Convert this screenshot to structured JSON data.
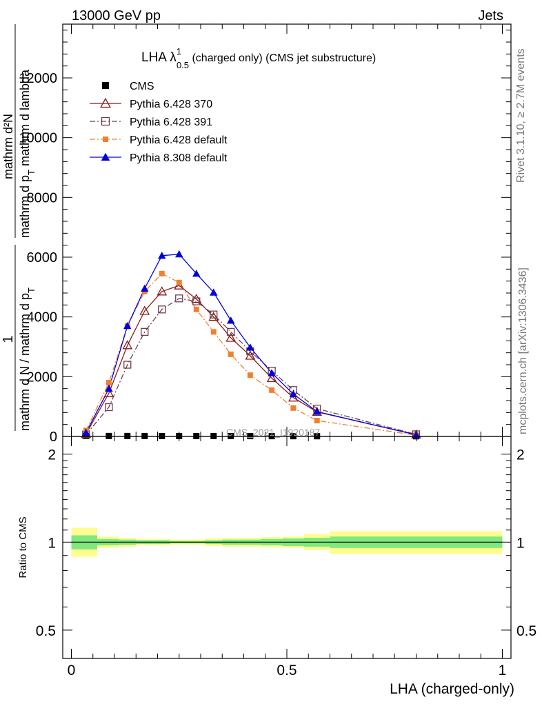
{
  "header": {
    "left_label": "13000 GeV pp",
    "right_label": "Jets"
  },
  "side_labels": {
    "rivet": "Rivet 3.1.10, ≥ 2.7M events",
    "mcplots": "mcplots.cern.ch [arXiv:1306.3436]"
  },
  "watermark": "CMS_2021_I1920187",
  "chart_data": [
    {
      "type": "line",
      "panel": "main",
      "title": {
        "prefix": "LHA λ",
        "sup": "1",
        "sub": "0.5",
        "suffix": " (charged only) (CMS jet substructure)"
      },
      "ylabel": {
        "frac_num": "1",
        "frac_den": "mathrm d N / mathrm d p",
        "den_sub": "T",
        "deriv_num": "mathrm d²N",
        "deriv_den": "mathrm d p",
        "deriv_den_sub": "T",
        "deriv_den_suffix": " mathrm d lambda"
      },
      "xlim": [
        -0.02,
        1.02
      ],
      "ylim": [
        0,
        13800
      ],
      "yticks": [
        {
          "v": 0,
          "label": "0"
        },
        {
          "v": 2000,
          "label": "2000"
        },
        {
          "v": 4000,
          "label": "4000"
        },
        {
          "v": 6000,
          "label": "6000"
        },
        {
          "v": 8000,
          "label": "8000"
        },
        {
          "v": 10000,
          "label": "10000"
        },
        {
          "v": 12000,
          "label": "12000"
        }
      ],
      "legend": "top-left",
      "series": [
        {
          "name": "CMS",
          "color": "#000000",
          "marker": "square-filled",
          "line": "none",
          "x": [
            0.034,
            0.087,
            0.13,
            0.17,
            0.21,
            0.25,
            0.29,
            0.33,
            0.37,
            0.415,
            0.465,
            0.515,
            0.57,
            0.8
          ],
          "y": [
            12,
            15,
            15,
            14,
            13,
            12,
            12,
            12,
            11,
            10,
            9,
            8,
            7,
            5
          ]
        },
        {
          "name": "Pythia 6.428 370",
          "color": "#8b1a1a",
          "marker": "triangle-open",
          "line": "solid",
          "x": [
            0.034,
            0.087,
            0.13,
            0.17,
            0.21,
            0.25,
            0.29,
            0.33,
            0.37,
            0.415,
            0.465,
            0.515,
            0.57,
            0.8
          ],
          "y": [
            80,
            1450,
            3050,
            4200,
            4850,
            5050,
            4600,
            4000,
            3300,
            2700,
            1950,
            1300,
            820,
            60
          ]
        },
        {
          "name": "Pythia 6.428 391",
          "color": "#6b3d4f",
          "marker": "square-open",
          "line": "dashdot",
          "x": [
            0.034,
            0.087,
            0.13,
            0.17,
            0.21,
            0.25,
            0.29,
            0.33,
            0.37,
            0.415,
            0.465,
            0.515,
            0.57,
            0.8
          ],
          "y": [
            60,
            980,
            2400,
            3500,
            4250,
            4620,
            4520,
            4080,
            3500,
            2850,
            2200,
            1550,
            930,
            70
          ]
        },
        {
          "name": "Pythia 6.428 default",
          "color": "#f08030",
          "marker": "square-filled",
          "line": "dashdot",
          "x": [
            0.034,
            0.087,
            0.13,
            0.17,
            0.21,
            0.25,
            0.29,
            0.33,
            0.37,
            0.415,
            0.465,
            0.515,
            0.57,
            0.8
          ],
          "y": [
            200,
            1800,
            3700,
            4850,
            5450,
            5150,
            4250,
            3500,
            2750,
            2050,
            1550,
            950,
            530,
            40
          ]
        },
        {
          "name": "Pythia 8.308 default",
          "color": "#0000dd",
          "marker": "triangle-filled",
          "line": "solid",
          "x": [
            0.034,
            0.087,
            0.13,
            0.17,
            0.21,
            0.25,
            0.29,
            0.33,
            0.37,
            0.415,
            0.465,
            0.515,
            0.57,
            0.8
          ],
          "y": [
            130,
            1600,
            3700,
            4950,
            6050,
            6100,
            5450,
            4820,
            3880,
            2980,
            2120,
            1420,
            830,
            50
          ]
        }
      ]
    },
    {
      "type": "band",
      "panel": "ratio",
      "ylabel": "Ratio to CMS",
      "xlabel": "LHA (charged-only)",
      "xlim": [
        -0.02,
        1.02
      ],
      "ylim": [
        0.4,
        2.3
      ],
      "log_y": true,
      "yticks": [
        {
          "v": 0.5,
          "label": "0.5"
        },
        {
          "v": 1,
          "label": "1"
        },
        {
          "v": 2,
          "label": "2"
        }
      ],
      "xticks": [
        {
          "v": 0,
          "label": "0"
        },
        {
          "v": 0.5,
          "label": "0.5"
        },
        {
          "v": 1,
          "label": "1"
        }
      ],
      "reference": 1,
      "bins": [
        {
          "lo": 0.0,
          "hi": 0.06,
          "stat": [
            0.945,
            1.055
          ],
          "total": [
            0.89,
            1.12
          ]
        },
        {
          "lo": 0.06,
          "hi": 0.11,
          "stat": [
            0.975,
            1.025
          ],
          "total": [
            0.955,
            1.045
          ]
        },
        {
          "lo": 0.11,
          "hi": 0.15,
          "stat": [
            0.98,
            1.02
          ],
          "total": [
            0.965,
            1.035
          ]
        },
        {
          "lo": 0.15,
          "hi": 0.19,
          "stat": [
            0.985,
            1.015
          ],
          "total": [
            0.975,
            1.025
          ]
        },
        {
          "lo": 0.19,
          "hi": 0.23,
          "stat": [
            0.985,
            1.015
          ],
          "total": [
            0.975,
            1.025
          ]
        },
        {
          "lo": 0.23,
          "hi": 0.27,
          "stat": [
            0.99,
            1.01
          ],
          "total": [
            0.98,
            1.02
          ]
        },
        {
          "lo": 0.27,
          "hi": 0.31,
          "stat": [
            0.99,
            1.01
          ],
          "total": [
            0.98,
            1.02
          ]
        },
        {
          "lo": 0.31,
          "hi": 0.35,
          "stat": [
            0.985,
            1.015
          ],
          "total": [
            0.97,
            1.03
          ]
        },
        {
          "lo": 0.35,
          "hi": 0.39,
          "stat": [
            0.98,
            1.02
          ],
          "total": [
            0.965,
            1.035
          ]
        },
        {
          "lo": 0.39,
          "hi": 0.44,
          "stat": [
            0.98,
            1.02
          ],
          "total": [
            0.965,
            1.035
          ]
        },
        {
          "lo": 0.44,
          "hi": 0.49,
          "stat": [
            0.975,
            1.025
          ],
          "total": [
            0.96,
            1.04
          ]
        },
        {
          "lo": 0.49,
          "hi": 0.54,
          "stat": [
            0.97,
            1.03
          ],
          "total": [
            0.955,
            1.045
          ]
        },
        {
          "lo": 0.54,
          "hi": 0.6,
          "stat": [
            0.965,
            1.035
          ],
          "total": [
            0.94,
            1.065
          ]
        },
        {
          "lo": 0.6,
          "hi": 1.0,
          "stat": [
            0.955,
            1.045
          ],
          "total": [
            0.91,
            1.09
          ]
        }
      ],
      "colors": {
        "stat": "#7fe87f",
        "total": "#fdfd90",
        "reference": "#000000"
      }
    }
  ]
}
